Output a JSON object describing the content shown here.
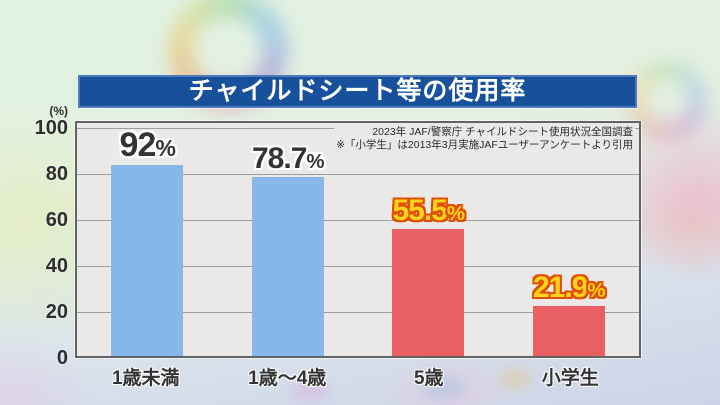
{
  "title": "チャイルドシート等の使用率",
  "y_axis": {
    "unit": "(%)",
    "ticks": [
      "100",
      "80",
      "60",
      "40",
      "20",
      "0"
    ]
  },
  "source_note": {
    "line1": "2023年  JAF/警察庁  チャイルドシート使用状況全国調査",
    "line2": "※「小学生」は2013年3月実施JAFユーザーアンケートより引用"
  },
  "percent_sign": "%",
  "colors": {
    "title_bar_bg": "#17509b",
    "bar_blue": "#87b7e8",
    "bar_red": "#ea5f62",
    "value_label_dark": "#333333",
    "value_label_yellow": "#ffd21e",
    "value_label_yellow_outline": "#e04f00",
    "plot_bg": "#eae9e7",
    "gridline": "#9e9d9b"
  },
  "chart_data": {
    "type": "bar",
    "title": "チャイルドシート等の使用率",
    "categories": [
      "1歳未満",
      "1歳～4歳",
      "5歳",
      "小学生"
    ],
    "values": [
      92,
      78.7,
      55.5,
      21.9
    ],
    "values_display": [
      "92",
      "78.7",
      "55.5",
      "21.9"
    ],
    "bar_colors": [
      "#87b7e8",
      "#87b7e8",
      "#ea5f62",
      "#ea5f62"
    ],
    "ylabel": "(%)",
    "ylim": [
      0,
      100
    ],
    "yticks": [
      0,
      20,
      40,
      60,
      80,
      100
    ],
    "grid": true,
    "legend": null,
    "annotations": [
      "2023年  JAF/警察庁  チャイルドシート使用状況全国調査",
      "※「小学生」は2013年3月実施JAFユーザーアンケートより引用"
    ]
  }
}
